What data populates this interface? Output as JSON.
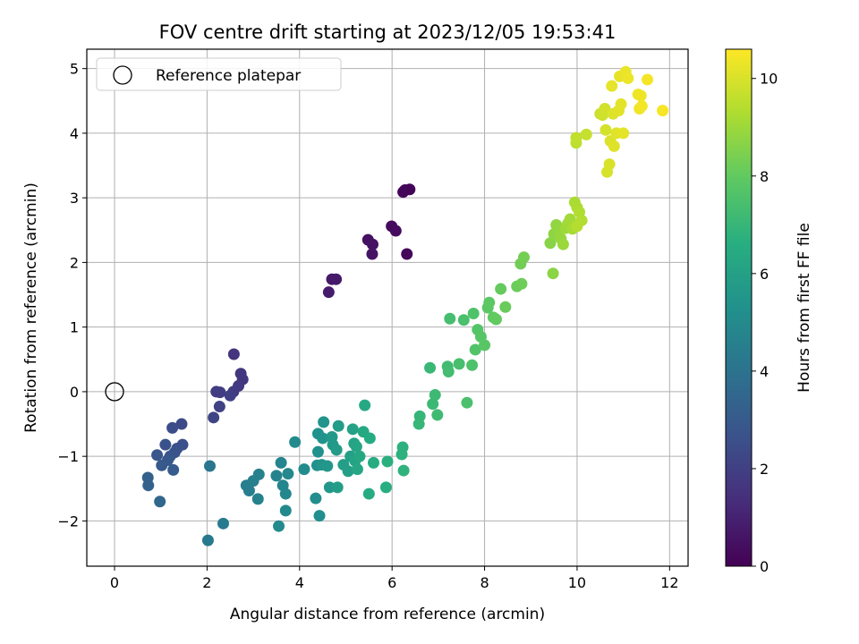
{
  "chart_data": {
    "type": "scatter",
    "title": "FOV centre drift starting at 2023/12/05 19:53:41",
    "xlabel": "Angular distance from reference (arcmin)",
    "ylabel": "Rotation from reference (arcmin)",
    "xlim": [
      -0.6,
      12.4
    ],
    "ylim": [
      -2.7,
      5.3
    ],
    "xticks": [
      0,
      2,
      4,
      6,
      8,
      10,
      12
    ],
    "yticks": [
      -2,
      -1,
      0,
      1,
      2,
      3,
      4,
      5
    ],
    "grid": true,
    "legend": {
      "placement": "upper-left",
      "entries": [
        "Reference platepar"
      ]
    },
    "reference_point": {
      "x": 0,
      "y": 0,
      "label": "Reference platepar"
    },
    "colorbar": {
      "label": "Hours from first FF file",
      "colormap": "viridis",
      "range": [
        0,
        10.6
      ],
      "ticks": [
        0,
        2,
        4,
        6,
        8,
        10
      ]
    },
    "points": [
      {
        "x": 6.28,
        "y": 3.12,
        "c": 0.1
      },
      {
        "x": 6.38,
        "y": 3.13,
        "c": 0.1
      },
      {
        "x": 6.24,
        "y": 3.09,
        "c": 0.15
      },
      {
        "x": 5.99,
        "y": 2.56,
        "c": 0.3
      },
      {
        "x": 6.08,
        "y": 2.49,
        "c": 0.35
      },
      {
        "x": 5.48,
        "y": 2.35,
        "c": 0.45
      },
      {
        "x": 5.58,
        "y": 2.28,
        "c": 0.5
      },
      {
        "x": 5.57,
        "y": 2.13,
        "c": 0.55
      },
      {
        "x": 6.32,
        "y": 2.13,
        "c": 0.2
      },
      {
        "x": 4.7,
        "y": 1.74,
        "c": 0.7
      },
      {
        "x": 4.79,
        "y": 1.74,
        "c": 0.75
      },
      {
        "x": 4.63,
        "y": 1.54,
        "c": 0.8
      },
      {
        "x": 2.58,
        "y": 0.58,
        "c": 1.6
      },
      {
        "x": 2.73,
        "y": 0.28,
        "c": 1.7
      },
      {
        "x": 2.77,
        "y": 0.19,
        "c": 1.75
      },
      {
        "x": 2.68,
        "y": 0.09,
        "c": 1.8
      },
      {
        "x": 2.2,
        "y": 0.0,
        "c": 1.9
      },
      {
        "x": 2.28,
        "y": -0.01,
        "c": 1.95
      },
      {
        "x": 2.57,
        "y": 0.0,
        "c": 1.85
      },
      {
        "x": 2.5,
        "y": -0.06,
        "c": 2.0
      },
      {
        "x": 2.27,
        "y": -0.23,
        "c": 2.1
      },
      {
        "x": 2.14,
        "y": -0.4,
        "c": 2.2
      },
      {
        "x": 1.45,
        "y": -0.5,
        "c": 2.4
      },
      {
        "x": 1.25,
        "y": -0.56,
        "c": 2.5
      },
      {
        "x": 1.47,
        "y": -0.82,
        "c": 2.6
      },
      {
        "x": 1.35,
        "y": -0.88,
        "c": 2.65
      },
      {
        "x": 1.1,
        "y": -0.82,
        "c": 2.7
      },
      {
        "x": 1.3,
        "y": -0.94,
        "c": 2.75
      },
      {
        "x": 1.2,
        "y": -1.0,
        "c": 2.8
      },
      {
        "x": 0.92,
        "y": -0.98,
        "c": 2.9
      },
      {
        "x": 1.15,
        "y": -1.06,
        "c": 2.95
      },
      {
        "x": 1.02,
        "y": -1.14,
        "c": 3.0
      },
      {
        "x": 1.27,
        "y": -1.21,
        "c": 3.05
      },
      {
        "x": 0.72,
        "y": -1.33,
        "c": 3.3
      },
      {
        "x": 0.73,
        "y": -1.45,
        "c": 3.4
      },
      {
        "x": 0.98,
        "y": -1.7,
        "c": 3.5
      },
      {
        "x": 2.06,
        "y": -1.15,
        "c": 4.2
      },
      {
        "x": 2.02,
        "y": -2.3,
        "c": 4.3
      },
      {
        "x": 2.35,
        "y": -2.04,
        "c": 4.4
      },
      {
        "x": 2.85,
        "y": -1.45,
        "c": 4.5
      },
      {
        "x": 2.91,
        "y": -1.53,
        "c": 4.55
      },
      {
        "x": 3.0,
        "y": -1.38,
        "c": 4.6
      },
      {
        "x": 3.12,
        "y": -1.28,
        "c": 4.65
      },
      {
        "x": 3.1,
        "y": -1.66,
        "c": 4.7
      },
      {
        "x": 3.5,
        "y": -1.3,
        "c": 4.75
      },
      {
        "x": 3.6,
        "y": -1.1,
        "c": 4.8
      },
      {
        "x": 3.64,
        "y": -1.45,
        "c": 4.85
      },
      {
        "x": 3.7,
        "y": -1.58,
        "c": 4.9
      },
      {
        "x": 3.75,
        "y": -1.27,
        "c": 4.95
      },
      {
        "x": 3.7,
        "y": -1.84,
        "c": 5.0
      },
      {
        "x": 3.55,
        "y": -2.08,
        "c": 5.05
      },
      {
        "x": 3.9,
        "y": -0.78,
        "c": 5.1
      },
      {
        "x": 4.1,
        "y": -1.2,
        "c": 5.15
      },
      {
        "x": 4.35,
        "y": -1.65,
        "c": 5.2
      },
      {
        "x": 4.43,
        "y": -1.92,
        "c": 5.25
      },
      {
        "x": 4.38,
        "y": -1.14,
        "c": 5.3
      },
      {
        "x": 4.4,
        "y": -0.93,
        "c": 5.35
      },
      {
        "x": 4.4,
        "y": -0.65,
        "c": 5.4
      },
      {
        "x": 4.5,
        "y": -0.72,
        "c": 5.45
      },
      {
        "x": 4.52,
        "y": -0.47,
        "c": 5.5
      },
      {
        "x": 4.48,
        "y": -1.13,
        "c": 5.55
      },
      {
        "x": 4.6,
        "y": -1.15,
        "c": 5.6
      },
      {
        "x": 4.65,
        "y": -1.48,
        "c": 5.65
      },
      {
        "x": 4.7,
        "y": -0.7,
        "c": 5.7
      },
      {
        "x": 4.72,
        "y": -0.82,
        "c": 5.75
      },
      {
        "x": 4.8,
        "y": -0.9,
        "c": 5.8
      },
      {
        "x": 4.84,
        "y": -0.53,
        "c": 5.85
      },
      {
        "x": 4.82,
        "y": -1.48,
        "c": 5.9
      },
      {
        "x": 4.95,
        "y": -1.13,
        "c": 5.95
      },
      {
        "x": 5.05,
        "y": -1.23,
        "c": 6.0
      },
      {
        "x": 5.1,
        "y": -1.0,
        "c": 6.05
      },
      {
        "x": 5.15,
        "y": -0.58,
        "c": 6.1
      },
      {
        "x": 5.18,
        "y": -0.8,
        "c": 6.15
      },
      {
        "x": 5.2,
        "y": -1.07,
        "c": 6.2
      },
      {
        "x": 5.23,
        "y": -0.85,
        "c": 6.25
      },
      {
        "x": 5.25,
        "y": -1.2,
        "c": 6.3
      },
      {
        "x": 5.3,
        "y": -1.0,
        "c": 6.35
      },
      {
        "x": 5.38,
        "y": -0.62,
        "c": 6.4
      },
      {
        "x": 5.41,
        "y": -0.21,
        "c": 6.45
      },
      {
        "x": 5.52,
        "y": -0.72,
        "c": 6.5
      },
      {
        "x": 5.5,
        "y": -1.58,
        "c": 6.55
      },
      {
        "x": 5.6,
        "y": -1.1,
        "c": 6.6
      },
      {
        "x": 5.87,
        "y": -1.48,
        "c": 6.65
      },
      {
        "x": 5.9,
        "y": -1.08,
        "c": 6.7
      },
      {
        "x": 6.23,
        "y": -0.86,
        "c": 6.75
      },
      {
        "x": 6.21,
        "y": -0.97,
        "c": 6.8
      },
      {
        "x": 6.25,
        "y": -1.22,
        "c": 6.85
      },
      {
        "x": 6.6,
        "y": -0.38,
        "c": 7.0
      },
      {
        "x": 6.58,
        "y": -0.5,
        "c": 7.05
      },
      {
        "x": 6.82,
        "y": 0.37,
        "c": 7.1
      },
      {
        "x": 6.88,
        "y": -0.19,
        "c": 7.15
      },
      {
        "x": 6.93,
        "y": -0.05,
        "c": 7.2
      },
      {
        "x": 6.98,
        "y": -0.36,
        "c": 7.25
      },
      {
        "x": 7.2,
        "y": 0.39,
        "c": 7.3
      },
      {
        "x": 7.22,
        "y": 0.31,
        "c": 7.35
      },
      {
        "x": 7.25,
        "y": 1.13,
        "c": 7.4
      },
      {
        "x": 7.45,
        "y": 0.43,
        "c": 7.45
      },
      {
        "x": 7.55,
        "y": 1.11,
        "c": 7.5
      },
      {
        "x": 7.62,
        "y": -0.17,
        "c": 7.55
      },
      {
        "x": 7.73,
        "y": 0.41,
        "c": 7.6
      },
      {
        "x": 7.76,
        "y": 1.21,
        "c": 7.65
      },
      {
        "x": 7.8,
        "y": 0.65,
        "c": 7.7
      },
      {
        "x": 7.85,
        "y": 0.96,
        "c": 7.75
      },
      {
        "x": 7.92,
        "y": 0.85,
        "c": 7.8
      },
      {
        "x": 8.0,
        "y": 0.72,
        "c": 7.85
      },
      {
        "x": 8.07,
        "y": 1.3,
        "c": 7.9
      },
      {
        "x": 8.1,
        "y": 1.38,
        "c": 7.95
      },
      {
        "x": 8.19,
        "y": 1.15,
        "c": 8.0
      },
      {
        "x": 8.25,
        "y": 1.12,
        "c": 8.05
      },
      {
        "x": 8.35,
        "y": 1.59,
        "c": 8.1
      },
      {
        "x": 8.45,
        "y": 1.31,
        "c": 8.15
      },
      {
        "x": 8.7,
        "y": 1.63,
        "c": 8.2
      },
      {
        "x": 8.8,
        "y": 1.67,
        "c": 8.25
      },
      {
        "x": 8.78,
        "y": 1.98,
        "c": 8.3
      },
      {
        "x": 8.85,
        "y": 2.08,
        "c": 8.35
      },
      {
        "x": 9.42,
        "y": 2.3,
        "c": 8.7
      },
      {
        "x": 9.48,
        "y": 1.83,
        "c": 8.75
      },
      {
        "x": 9.5,
        "y": 2.44,
        "c": 8.8
      },
      {
        "x": 9.55,
        "y": 2.58,
        "c": 8.85
      },
      {
        "x": 9.6,
        "y": 2.5,
        "c": 8.9
      },
      {
        "x": 9.65,
        "y": 2.37,
        "c": 8.95
      },
      {
        "x": 9.7,
        "y": 2.28,
        "c": 9.0
      },
      {
        "x": 9.75,
        "y": 2.53,
        "c": 9.05
      },
      {
        "x": 9.8,
        "y": 2.6,
        "c": 9.1
      },
      {
        "x": 9.85,
        "y": 2.67,
        "c": 9.15
      },
      {
        "x": 9.9,
        "y": 2.52,
        "c": 9.2
      },
      {
        "x": 9.95,
        "y": 2.93,
        "c": 9.25
      },
      {
        "x": 10.0,
        "y": 2.85,
        "c": 9.3
      },
      {
        "x": 10.05,
        "y": 2.78,
        "c": 9.35
      },
      {
        "x": 10.1,
        "y": 2.65,
        "c": 9.4
      },
      {
        "x": 10.0,
        "y": 2.56,
        "c": 9.45
      },
      {
        "x": 9.98,
        "y": 3.85,
        "c": 9.6
      },
      {
        "x": 9.98,
        "y": 3.93,
        "c": 9.65
      },
      {
        "x": 10.2,
        "y": 3.98,
        "c": 9.7
      },
      {
        "x": 10.5,
        "y": 4.3,
        "c": 9.8
      },
      {
        "x": 10.55,
        "y": 4.28,
        "c": 9.85
      },
      {
        "x": 10.6,
        "y": 4.38,
        "c": 9.9
      },
      {
        "x": 10.62,
        "y": 4.05,
        "c": 9.95
      },
      {
        "x": 10.65,
        "y": 3.4,
        "c": 10.0
      },
      {
        "x": 10.7,
        "y": 3.52,
        "c": 10.02
      },
      {
        "x": 10.72,
        "y": 3.88,
        "c": 10.05
      },
      {
        "x": 10.78,
        "y": 4.3,
        "c": 10.08
      },
      {
        "x": 10.8,
        "y": 3.8,
        "c": 10.1
      },
      {
        "x": 10.85,
        "y": 4.0,
        "c": 10.12
      },
      {
        "x": 10.9,
        "y": 4.35,
        "c": 10.15
      },
      {
        "x": 10.95,
        "y": 4.45,
        "c": 10.18
      },
      {
        "x": 11.0,
        "y": 4.0,
        "c": 10.2
      },
      {
        "x": 10.75,
        "y": 4.73,
        "c": 10.22
      },
      {
        "x": 10.92,
        "y": 4.88,
        "c": 10.25
      },
      {
        "x": 11.05,
        "y": 4.95,
        "c": 10.3
      },
      {
        "x": 11.1,
        "y": 4.85,
        "c": 10.33
      },
      {
        "x": 11.32,
        "y": 4.6,
        "c": 10.36
      },
      {
        "x": 11.38,
        "y": 4.58,
        "c": 10.38
      },
      {
        "x": 11.35,
        "y": 4.38,
        "c": 10.4
      },
      {
        "x": 11.4,
        "y": 4.42,
        "c": 10.42
      },
      {
        "x": 11.52,
        "y": 4.83,
        "c": 10.45
      },
      {
        "x": 11.85,
        "y": 4.35,
        "c": 10.5
      }
    ]
  }
}
